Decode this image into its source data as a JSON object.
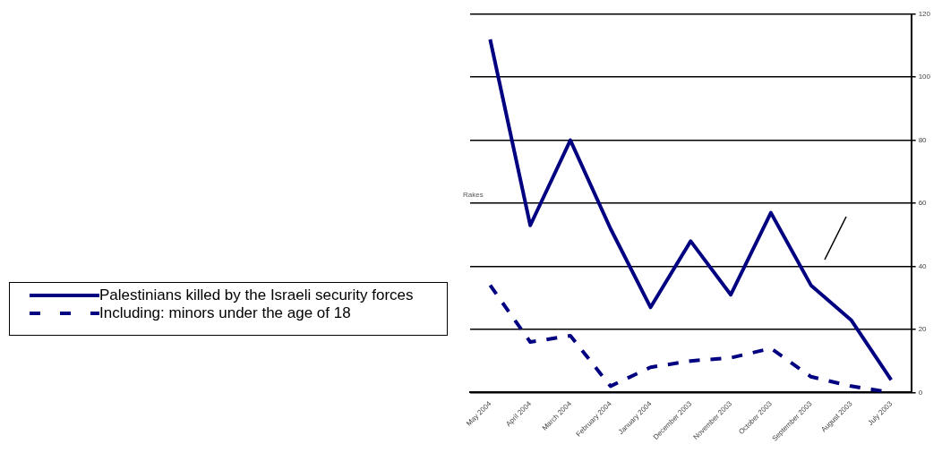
{
  "chart_data": {
    "type": "line",
    "categories": [
      "May 2004",
      "April 2004",
      "March 2004",
      "February 2004",
      "January 2004",
      "December 2003",
      "November 2003",
      "October 2003",
      "September 2003",
      "August 2003",
      "July 2003"
    ],
    "series": [
      {
        "name": "Palestinians killed by the Israeli security forces",
        "color": "#000080",
        "values": [
          112,
          53,
          80,
          52,
          27,
          48,
          31,
          57,
          34,
          23,
          4
        ],
        "line_style": "solid"
      },
      {
        "name": "Including: minors under the age of 18",
        "color": "#000080",
        "values": [
          34,
          16,
          18,
          2,
          8,
          10,
          11,
          14,
          5,
          2,
          0
        ],
        "line_style": "dashed"
      }
    ],
    "ylim": [
      0,
      120
    ],
    "yticks": [
      0,
      20,
      40,
      60,
      80,
      100,
      120
    ],
    "grid": "y",
    "legend": "left",
    "marker": "none",
    "annotations": [
      "Rakes"
    ]
  }
}
